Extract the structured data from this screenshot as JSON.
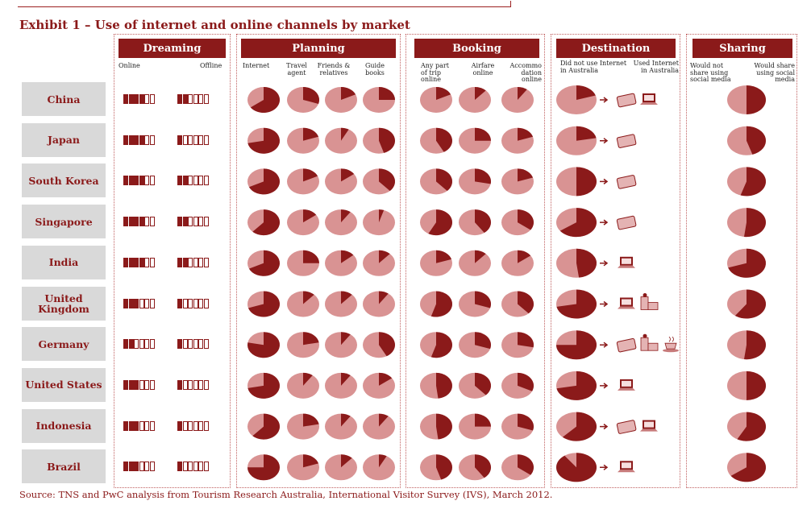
{
  "title": "Exhibit 1 – Use of internet and online channels by market",
  "source": "Source: TNS and PwC analysis from Tourism Research Australia, International Visitor Survey (IVS), March 2012.",
  "colors": {
    "dark": "#8b1a1a",
    "light": "#d99393",
    "box": "#d9d9d9"
  },
  "panels": [
    {
      "key": "dreaming",
      "header": "Dreaming",
      "columns": [
        "Online",
        "Offline"
      ]
    },
    {
      "key": "planning",
      "header": "Planning",
      "columns": [
        "Internet",
        "Travel agent",
        "Friends & relatives",
        "Guide books"
      ]
    },
    {
      "key": "booking",
      "header": "Booking",
      "columns": [
        "Any part of trip online",
        "Airfare online",
        "Accommo dation online"
      ]
    },
    {
      "key": "destination",
      "header": "Destination",
      "columns": [
        "Did not use Internet in Australia",
        "Used Internet in Australia"
      ]
    },
    {
      "key": "sharing",
      "header": "Sharing",
      "columns": [
        "Would not share using social media",
        "Would share using social media"
      ]
    }
  ],
  "chart_data": {
    "type": "pie",
    "title": "Exhibit 1 – Use of internet and online channels by market",
    "markets": [
      "China",
      "Japan",
      "South Korea",
      "Singapore",
      "India",
      "United Kingdom",
      "Germany",
      "United States",
      "Indonesia",
      "Brazil"
    ],
    "dreaming": {
      "scale_max": 6,
      "online": [
        4,
        4,
        4,
        4,
        4,
        3,
        2,
        3,
        3,
        3
      ],
      "offline": [
        2,
        1,
        2,
        2,
        2,
        1,
        1,
        1,
        1,
        1
      ]
    },
    "planning": {
      "internet": [
        0.65,
        0.72,
        0.68,
        0.62,
        0.68,
        0.7,
        0.78,
        0.72,
        0.62,
        0.75
      ],
      "travel_agent": [
        0.3,
        0.2,
        0.18,
        0.15,
        0.25,
        0.12,
        0.22,
        0.1,
        0.22,
        0.2
      ],
      "friends_relatives": [
        0.18,
        0.08,
        0.15,
        0.1,
        0.14,
        0.12,
        0.1,
        0.1,
        0.1,
        0.12
      ],
      "guide_books": [
        0.25,
        0.45,
        0.38,
        0.05,
        0.12,
        0.1,
        0.42,
        0.15,
        0.1,
        0.08
      ]
    },
    "booking": {
      "any_part_online": [
        0.18,
        0.42,
        0.38,
        0.58,
        0.2,
        0.55,
        0.55,
        0.48,
        0.48,
        0.45
      ],
      "airfare_online": [
        0.12,
        0.25,
        0.28,
        0.4,
        0.12,
        0.3,
        0.3,
        0.38,
        0.25,
        0.4
      ],
      "accommodation_online": [
        0.1,
        0.2,
        0.2,
        0.35,
        0.15,
        0.38,
        0.28,
        0.32,
        0.3,
        0.35
      ]
    },
    "destination": {
      "used_internet": [
        0.2,
        0.22,
        0.5,
        0.65,
        0.48,
        0.72,
        0.75,
        0.72,
        0.62,
        0.9
      ],
      "devices": [
        [
          "tablet",
          "laptop"
        ],
        [
          "tablet"
        ],
        [
          "tablet"
        ],
        [
          "tablet"
        ],
        [
          "laptop"
        ],
        [
          "laptop",
          "internet-cafe"
        ],
        [
          "tablet",
          "internet-cafe",
          "cafe"
        ],
        [
          "laptop"
        ],
        [
          "tablet",
          "laptop"
        ],
        [
          "laptop"
        ]
      ]
    },
    "sharing": {
      "would_share": [
        0.5,
        0.45,
        0.55,
        0.52,
        0.7,
        0.6,
        0.52,
        0.5,
        0.58,
        0.65
      ]
    }
  }
}
